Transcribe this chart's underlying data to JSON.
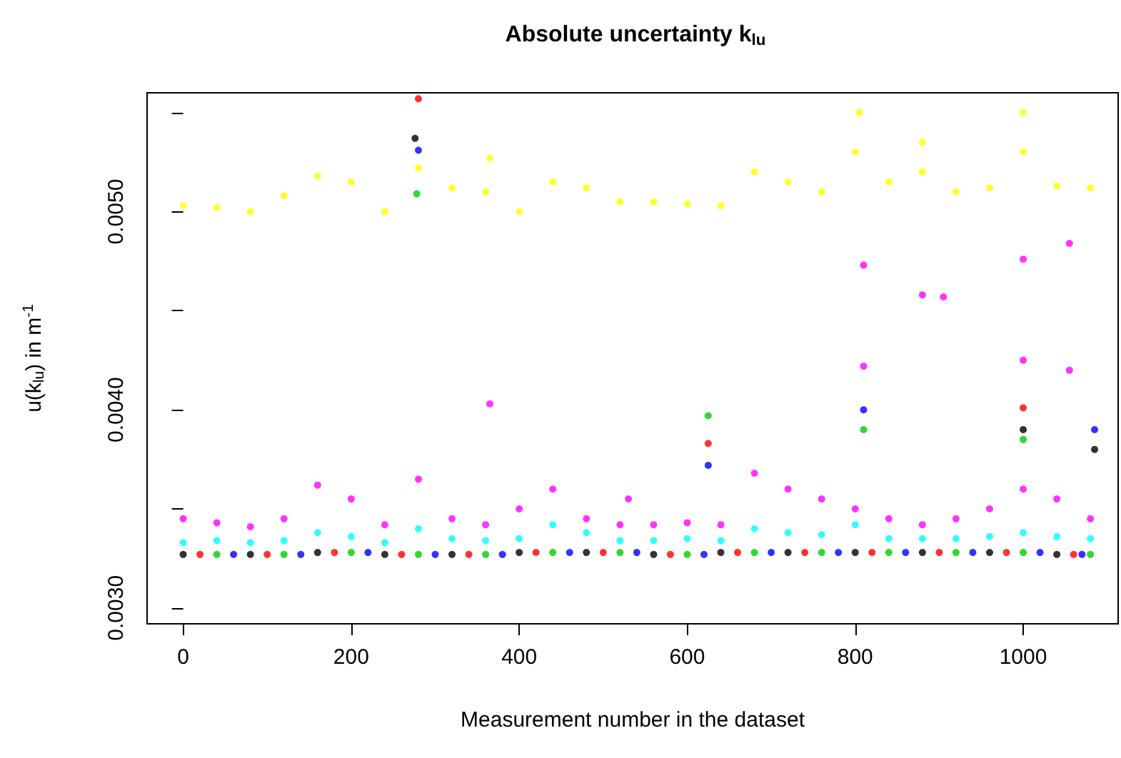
{
  "chart_data": {
    "type": "scatter",
    "title": "Absolute uncertainty k$_{lu}$",
    "xlabel": "Measurement number in the dataset",
    "ylabel": "u(k$_{lu}$) in m$^{-1}$",
    "xlim": [
      -43,
      1113
    ],
    "xticks": [
      0,
      200,
      400,
      600,
      800,
      1000
    ],
    "ylim": [
      0.00292,
      0.0056
    ],
    "yticks": [
      {
        "value": 0.003,
        "label": "0.0030"
      },
      {
        "value": 0.0035,
        "label": null
      },
      {
        "value": 0.004,
        "label": "0.0040"
      },
      {
        "value": 0.0045,
        "label": null
      },
      {
        "value": 0.005,
        "label": "0.0050"
      },
      {
        "value": 0.0055,
        "label": null
      }
    ],
    "grid": false,
    "marker": "circle",
    "series": [
      {
        "color": "#000000",
        "x": [
          0,
          80,
          160,
          240,
          320,
          400,
          480,
          560,
          640,
          720,
          800,
          880,
          960,
          1040,
          276,
          1000,
          1085
        ],
        "values": [
          0.00327,
          0.00327,
          0.00328,
          0.00327,
          0.00327,
          0.00328,
          0.00328,
          0.00327,
          0.00328,
          0.00328,
          0.00328,
          0.00328,
          0.00328,
          0.00327,
          0.00537,
          0.0039,
          0.0038
        ]
      },
      {
        "color": "#ff0000",
        "x": [
          20,
          100,
          180,
          260,
          340,
          420,
          500,
          580,
          660,
          740,
          820,
          900,
          980,
          1060,
          280,
          625,
          1000
        ],
        "values": [
          0.00327,
          0.00327,
          0.00328,
          0.00327,
          0.00327,
          0.00328,
          0.00328,
          0.00327,
          0.00328,
          0.00328,
          0.00328,
          0.00328,
          0.00328,
          0.00327,
          0.00557,
          0.00383,
          0.00401
        ]
      },
      {
        "color": "#00cd00",
        "x": [
          40,
          120,
          200,
          280,
          360,
          440,
          520,
          600,
          680,
          760,
          840,
          920,
          1000,
          1080,
          278,
          625,
          1000,
          810
        ],
        "values": [
          0.00327,
          0.00327,
          0.00328,
          0.00327,
          0.00327,
          0.00328,
          0.00328,
          0.00327,
          0.00328,
          0.00328,
          0.00328,
          0.00328,
          0.00328,
          0.00327,
          0.00509,
          0.00397,
          0.00385,
          0.0039
        ]
      },
      {
        "color": "#0000ff",
        "x": [
          60,
          140,
          220,
          300,
          380,
          460,
          540,
          620,
          700,
          780,
          860,
          940,
          1020,
          1070,
          280,
          625,
          810,
          1085
        ],
        "values": [
          0.00327,
          0.00327,
          0.00328,
          0.00327,
          0.00327,
          0.00328,
          0.00328,
          0.00327,
          0.00328,
          0.00328,
          0.00328,
          0.00328,
          0.00328,
          0.00327,
          0.00531,
          0.00372,
          0.004,
          0.0039
        ]
      },
      {
        "color": "#00ffff",
        "x": [
          0,
          40,
          80,
          120,
          160,
          200,
          240,
          280,
          320,
          360,
          400,
          440,
          480,
          520,
          560,
          600,
          640,
          680,
          720,
          760,
          800,
          840,
          880,
          920,
          960,
          1000,
          1040,
          1080
        ],
        "values": [
          0.00333,
          0.00334,
          0.00333,
          0.00334,
          0.00338,
          0.00336,
          0.00333,
          0.0034,
          0.00335,
          0.00334,
          0.00335,
          0.00342,
          0.00338,
          0.00334,
          0.00334,
          0.00335,
          0.00334,
          0.0034,
          0.00338,
          0.00337,
          0.00342,
          0.00335,
          0.00335,
          0.00335,
          0.00336,
          0.00338,
          0.00336,
          0.00335
        ]
      },
      {
        "color": "#ff00ff",
        "x": [
          0,
          40,
          80,
          120,
          160,
          200,
          240,
          280,
          320,
          360,
          400,
          440,
          480,
          520,
          560,
          600,
          640,
          680,
          720,
          760,
          800,
          840,
          880,
          920,
          960,
          1000,
          1040,
          1080,
          365,
          530,
          810,
          810,
          880,
          905,
          1000,
          1000,
          1055,
          1055
        ],
        "values": [
          0.00345,
          0.00343,
          0.00341,
          0.00345,
          0.00362,
          0.00355,
          0.00342,
          0.00365,
          0.00345,
          0.00342,
          0.0035,
          0.0036,
          0.00345,
          0.00342,
          0.00342,
          0.00343,
          0.00342,
          0.00368,
          0.0036,
          0.00355,
          0.0035,
          0.00345,
          0.00342,
          0.00345,
          0.0035,
          0.0036,
          0.00355,
          0.00345,
          0.00403,
          0.00355,
          0.00473,
          0.00422,
          0.00458,
          0.00457,
          0.00476,
          0.00425,
          0.00484,
          0.0042
        ]
      },
      {
        "color": "#ffff00",
        "x": [
          0,
          40,
          80,
          120,
          160,
          200,
          240,
          280,
          320,
          360,
          400,
          440,
          480,
          520,
          560,
          600,
          640,
          680,
          720,
          760,
          800,
          840,
          880,
          920,
          960,
          1000,
          1040,
          1080,
          805,
          880,
          1000,
          365
        ],
        "values": [
          0.00503,
          0.00502,
          0.005,
          0.00508,
          0.00518,
          0.00515,
          0.005,
          0.00522,
          0.00512,
          0.0051,
          0.005,
          0.00515,
          0.00512,
          0.00505,
          0.00505,
          0.00504,
          0.00503,
          0.0052,
          0.00515,
          0.0051,
          0.0053,
          0.00515,
          0.0052,
          0.0051,
          0.00512,
          0.0053,
          0.00513,
          0.00512,
          0.0055,
          0.00535,
          0.0055,
          0.00527
        ]
      }
    ]
  }
}
